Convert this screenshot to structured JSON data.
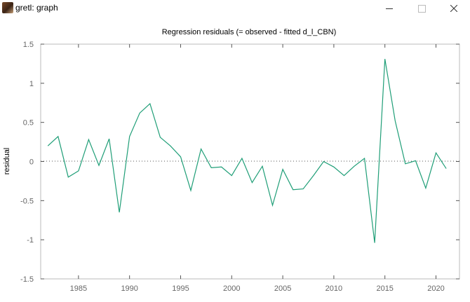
{
  "window": {
    "title": "gretl: graph",
    "icon": "gretl-app-icon",
    "controls": [
      "minimize-icon",
      "maximize-icon",
      "close-icon"
    ]
  },
  "chart_data": {
    "type": "line",
    "title": "Regression residuals (= observed - fitted d_l_CBN)",
    "xlabel": "",
    "ylabel": "residual",
    "xlim": [
      1981.3,
      2022.3
    ],
    "ylim": [
      -1.5,
      1.5
    ],
    "xticks": [
      1985,
      1990,
      1995,
      2000,
      2005,
      2010,
      2015,
      2020
    ],
    "yticks": [
      -1.5,
      -1,
      -0.5,
      0,
      0.5,
      1,
      1.5
    ],
    "ytick_labels": [
      "-1.5",
      "-1",
      "-0.5",
      "0",
      "0.5",
      "1",
      "1.5"
    ],
    "zero_line": true,
    "grid": false,
    "series_color": "#1f9e77",
    "series": [
      {
        "x": [
          1982,
          1983,
          1984,
          1985,
          1986,
          1987,
          1988,
          1989,
          1990,
          1991,
          1992,
          1993,
          1994,
          1995,
          1996,
          1997,
          1998,
          1999,
          2000,
          2001,
          2002,
          2003,
          2004,
          2005,
          2006,
          2007,
          2008,
          2009,
          2010,
          2011,
          2012,
          2013,
          2014,
          2015,
          2016,
          2017,
          2018,
          2019,
          2020,
          2021
        ],
        "values": [
          0.2,
          0.32,
          -0.2,
          -0.12,
          0.28,
          -0.05,
          0.29,
          -0.65,
          0.32,
          0.62,
          0.74,
          0.31,
          0.2,
          0.06,
          -0.37,
          0.16,
          -0.08,
          -0.07,
          -0.18,
          0.04,
          -0.27,
          -0.06,
          -0.56,
          -0.1,
          -0.36,
          -0.35,
          -0.18,
          0.0,
          -0.07,
          -0.18,
          -0.06,
          0.04,
          -1.04,
          1.31,
          0.52,
          -0.03,
          0.01,
          -0.34,
          0.11,
          -0.09
        ]
      }
    ]
  }
}
